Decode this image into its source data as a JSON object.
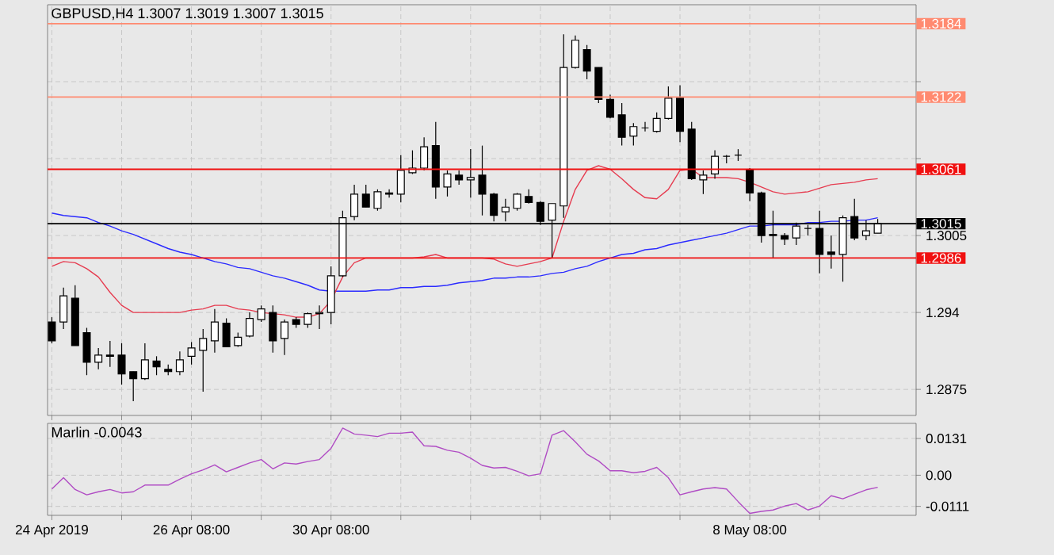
{
  "chart_data": [
    {
      "type": "candlestick",
      "title": "GBPUSD,H4 1.3007 1.3019 1.3007 1.3015",
      "categories": [
        null,
        null,
        null,
        null,
        null,
        null,
        null,
        null,
        null,
        null,
        null,
        null,
        null,
        null,
        null,
        null,
        null,
        null,
        null,
        null,
        null,
        null,
        null,
        null,
        null,
        null,
        null,
        null,
        null,
        null,
        null,
        null,
        null,
        null,
        null,
        null,
        null,
        null,
        null,
        null,
        null,
        null,
        null,
        null,
        null,
        null,
        null,
        null,
        null,
        null,
        null,
        null,
        null,
        null,
        null,
        null,
        null,
        null,
        null,
        null,
        null,
        null,
        null,
        null,
        null,
        null,
        null,
        null,
        null,
        null,
        null,
        null
      ],
      "ohlc": [
        [
          1.2932,
          1.2936,
          1.2914,
          1.2916
        ],
        [
          1.2932,
          1.2961,
          1.2926,
          1.2954
        ],
        [
          1.2952,
          1.2963,
          1.2912,
          1.2912
        ],
        [
          1.2923,
          1.2927,
          1.2887,
          1.2898
        ],
        [
          1.2898,
          1.291,
          1.2892,
          1.2904
        ],
        [
          1.2904,
          1.2916,
          1.2894,
          1.2903
        ],
        [
          1.2904,
          1.2914,
          1.2879,
          1.2888
        ],
        [
          1.289,
          1.289,
          1.2865,
          1.2884
        ],
        [
          1.2884,
          1.2914,
          1.2883,
          1.29
        ],
        [
          1.2899,
          1.2903,
          1.2887,
          1.2894
        ],
        [
          1.2892,
          1.2896,
          1.2887,
          1.289
        ],
        [
          1.289,
          1.2907,
          1.2887,
          1.29
        ],
        [
          1.2903,
          1.2915,
          1.2896,
          1.291
        ],
        [
          1.2908,
          1.2926,
          1.2873,
          1.2918
        ],
        [
          1.2916,
          1.2943,
          1.2906,
          1.2932
        ],
        [
          1.2931,
          1.2935,
          1.2911,
          1.2911
        ],
        [
          1.2912,
          1.2923,
          1.2911,
          1.2919
        ],
        [
          1.292,
          1.294,
          1.2919,
          1.2935
        ],
        [
          1.2934,
          1.2946,
          1.2932,
          1.2943
        ],
        [
          1.294,
          1.2946,
          1.2906,
          1.2916
        ],
        [
          1.2918,
          1.2934,
          1.2904,
          1.2932
        ],
        [
          1.2934,
          1.2936,
          1.2927,
          1.293
        ],
        [
          1.293,
          1.294,
          1.2927,
          1.2939
        ],
        [
          1.2939,
          1.2946,
          1.2926,
          1.294
        ],
        [
          1.294,
          1.2979,
          1.293,
          1.2971
        ],
        [
          1.2971,
          1.3026,
          1.297,
          1.302
        ],
        [
          1.3021,
          1.3048,
          1.3018,
          1.304
        ],
        [
          1.304,
          1.3048,
          1.3029,
          1.3029
        ],
        [
          1.3028,
          1.3044,
          1.3026,
          1.3042
        ],
        [
          1.3041,
          1.3044,
          1.3037,
          1.304
        ],
        [
          1.304,
          1.3073,
          1.3033,
          1.306
        ],
        [
          1.3058,
          1.3077,
          1.3057,
          1.3062
        ],
        [
          1.3062,
          1.3088,
          1.306,
          1.308
        ],
        [
          1.3081,
          1.3101,
          1.3036,
          1.3046
        ],
        [
          1.3046,
          1.306,
          1.3038,
          1.3057
        ],
        [
          1.3056,
          1.306,
          1.3048,
          1.3052
        ],
        [
          1.3052,
          1.3078,
          1.3037,
          1.3054
        ],
        [
          1.3056,
          1.3081,
          1.3022,
          1.304
        ],
        [
          1.304,
          1.3041,
          1.3017,
          1.3022
        ],
        [
          1.3025,
          1.3036,
          1.3017,
          1.3029
        ],
        [
          1.3028,
          1.3041,
          1.3026,
          1.304
        ],
        [
          1.3038,
          1.3044,
          1.3032,
          1.3033
        ],
        [
          1.3033,
          1.3034,
          1.3014,
          1.3017
        ],
        [
          1.3018,
          1.3032,
          1.2986,
          1.3032
        ],
        [
          1.303,
          1.3175,
          1.302,
          1.3147
        ],
        [
          1.3147,
          1.3174,
          1.3146,
          1.317
        ],
        [
          1.3162,
          1.3166,
          1.3137,
          1.3144
        ],
        [
          1.3147,
          1.3147,
          1.3117,
          1.312
        ],
        [
          1.312,
          1.3124,
          1.3104,
          1.3105
        ],
        [
          1.3107,
          1.3117,
          1.3081,
          1.3088
        ],
        [
          1.3089,
          1.31,
          1.3081,
          1.3097
        ],
        [
          1.3096,
          1.3101,
          1.3093,
          1.3096
        ],
        [
          1.3093,
          1.3109,
          1.3092,
          1.3104
        ],
        [
          1.3104,
          1.3131,
          1.3103,
          1.3121
        ],
        [
          1.3121,
          1.3132,
          1.3084,
          1.3093
        ],
        [
          1.3095,
          1.3101,
          1.3052,
          1.3053
        ],
        [
          1.3052,
          1.306,
          1.304,
          1.3056
        ],
        [
          1.3057,
          1.3077,
          1.3053,
          1.3072
        ],
        [
          1.3072,
          1.3073,
          1.3066,
          1.3072
        ],
        [
          1.3073,
          1.3078,
          1.3068,
          1.3073
        ],
        [
          1.3061,
          1.3062,
          1.3034,
          1.3041
        ],
        [
          1.3041,
          1.3042,
          1.2999,
          1.3005
        ],
        [
          1.3006,
          1.3026,
          1.2986,
          1.3005
        ],
        [
          1.3005,
          1.3007,
          1.2997,
          1.3002
        ],
        [
          1.3003,
          1.3016,
          1.2997,
          1.3013
        ],
        [
          1.3011,
          1.3014,
          1.3005,
          1.3011
        ],
        [
          1.3011,
          1.3026,
          1.2973,
          1.2989
        ],
        [
          1.2991,
          1.3005,
          1.2977,
          1.2989
        ],
        [
          1.2989,
          1.3022,
          1.2966,
          1.302
        ],
        [
          1.3021,
          1.3036,
          1.3001,
          1.3003
        ],
        [
          1.3005,
          1.3018,
          1.3001,
          1.3009
        ],
        [
          1.3007,
          1.3019,
          1.3007,
          1.3015
        ]
      ],
      "series": [
        {
          "type": "line",
          "color": "#2b2bff",
          "values": [
            1.3024,
            1.3022,
            1.3021,
            1.302,
            1.3016,
            1.3013,
            1.3009,
            1.3006,
            1.3002,
            1.2998,
            1.2994,
            1.2991,
            1.2989,
            1.2986,
            1.2983,
            1.2981,
            1.2978,
            1.2977,
            1.2974,
            1.2971,
            1.2969,
            1.2966,
            1.2963,
            1.2959,
            1.2958,
            1.2958,
            1.2958,
            1.2958,
            1.2959,
            1.2959,
            1.2961,
            1.2961,
            1.2962,
            1.2962,
            1.2963,
            1.2965,
            1.2966,
            1.2967,
            1.2969,
            1.2969,
            1.297,
            1.297,
            1.2971,
            1.2973,
            1.2974,
            1.2977,
            1.2979,
            1.2983,
            1.2986,
            1.2989,
            1.299,
            1.2993,
            1.2994,
            1.2997,
            1.2999,
            1.3001,
            1.3003,
            1.3005,
            1.3007,
            1.301,
            1.3013,
            1.3013,
            1.3014,
            1.3014,
            1.3014,
            1.3016,
            1.3016,
            1.3017,
            1.3017,
            1.3018,
            1.3018,
            1.302
          ]
        },
        {
          "type": "line",
          "color": "#e63c50",
          "values": [
            1.2979,
            1.2983,
            1.2982,
            1.2977,
            1.297,
            1.2957,
            1.2946,
            1.294,
            1.294,
            1.294,
            1.294,
            1.294,
            1.2942,
            1.2943,
            1.2946,
            1.2946,
            1.2943,
            1.2942,
            1.294,
            1.2939,
            1.2938,
            1.2936,
            1.2936,
            1.2939,
            1.295,
            1.297,
            1.2982,
            1.2986,
            1.2986,
            1.2986,
            1.2986,
            1.2986,
            1.2987,
            1.2989,
            1.2986,
            1.2986,
            1.2986,
            1.2986,
            1.2985,
            1.2981,
            1.2979,
            1.2981,
            1.2983,
            1.2986,
            1.3017,
            1.3044,
            1.306,
            1.3064,
            1.3061,
            1.3053,
            1.3044,
            1.3037,
            1.3036,
            1.3044,
            1.306,
            1.3061,
            1.3054,
            1.3054,
            1.3054,
            1.3053,
            1.305,
            1.3046,
            1.3042,
            1.304,
            1.3041,
            1.3042,
            1.3045,
            1.3048,
            1.3049,
            1.305,
            1.3052,
            1.3053
          ]
        }
      ],
      "ylim": [
        1.2853,
        1.32
      ],
      "yticks": [
        1.2875,
        1.294,
        1.3005,
        {
          "value": 1.307,
          "label": null
        },
        {
          "value": 1.3135,
          "label": null
        }
      ],
      "ref_lines": [
        {
          "axis": "y",
          "value": 1.3184,
          "label": "1.3184",
          "color": "#ff8a70"
        },
        {
          "axis": "y",
          "value": 1.3122,
          "label": "1.3122",
          "color": "#ff8a70"
        },
        {
          "axis": "y",
          "value": 1.3061,
          "label": "1.3061",
          "color": "#f01010"
        },
        {
          "axis": "y",
          "value": 1.2986,
          "label": "1.2986",
          "color": "#f01010"
        },
        {
          "axis": "y",
          "value": 1.3015,
          "label": "1.3015",
          "color": "#000000"
        }
      ],
      "grid": true,
      "tick_labels": "y"
    },
    {
      "type": "line",
      "title": "Marlin -0.0043",
      "categories": [
        "24 Apr 2019",
        null,
        null,
        null,
        null,
        null,
        null,
        null,
        null,
        null,
        null,
        null,
        "26 Apr 08:00",
        null,
        null,
        null,
        null,
        null,
        null,
        null,
        null,
        null,
        null,
        null,
        "30 Apr 08:00",
        null,
        null,
        null,
        null,
        null,
        null,
        null,
        null,
        null,
        null,
        null,
        null,
        null,
        null,
        null,
        null,
        null,
        null,
        null,
        null,
        null,
        null,
        null,
        null,
        null,
        null,
        null,
        null,
        null,
        null,
        null,
        null,
        null,
        null,
        null,
        "8 May 08:00",
        null,
        null,
        null,
        null,
        null,
        null,
        null,
        null,
        null,
        null,
        null
      ],
      "series": [
        {
          "color": "#b04cc4",
          "values": [
            -0.0049,
            -0.0009,
            -0.0051,
            -0.007,
            -0.0059,
            -0.0051,
            -0.0063,
            -0.0059,
            -0.0035,
            -0.0035,
            -0.0035,
            -0.0014,
            0.0005,
            0.0019,
            0.0037,
            0.0012,
            0.0028,
            0.0044,
            0.0056,
            0.0023,
            0.0044,
            0.004,
            0.0049,
            0.0056,
            0.0096,
            0.0168,
            0.0147,
            0.0143,
            0.0138,
            0.015,
            0.015,
            0.0154,
            0.0105,
            0.0103,
            0.0089,
            0.0082,
            0.0061,
            0.0035,
            0.0026,
            0.0028,
            0.0014,
            -0.0002,
            0.0005,
            0.0143,
            0.0159,
            0.0119,
            0.0075,
            0.0051,
            0.0016,
            0.0016,
            0.0009,
            0.0014,
            0.0028,
            -0.0009,
            -0.007,
            -0.0059,
            -0.0049,
            -0.0044,
            -0.0049,
            -0.0094,
            -0.0136,
            -0.0129,
            -0.0124,
            -0.011,
            -0.0101,
            -0.0124,
            -0.011,
            -0.0073,
            -0.0084,
            -0.0068,
            -0.0052,
            -0.0043
          ]
        }
      ],
      "ylim": [
        -0.0143,
        0.0185
      ],
      "yticks": [
        0.0131,
        {
          "value": 0,
          "label": "0.00"
        },
        -0.0111
      ],
      "grid": true
    }
  ]
}
